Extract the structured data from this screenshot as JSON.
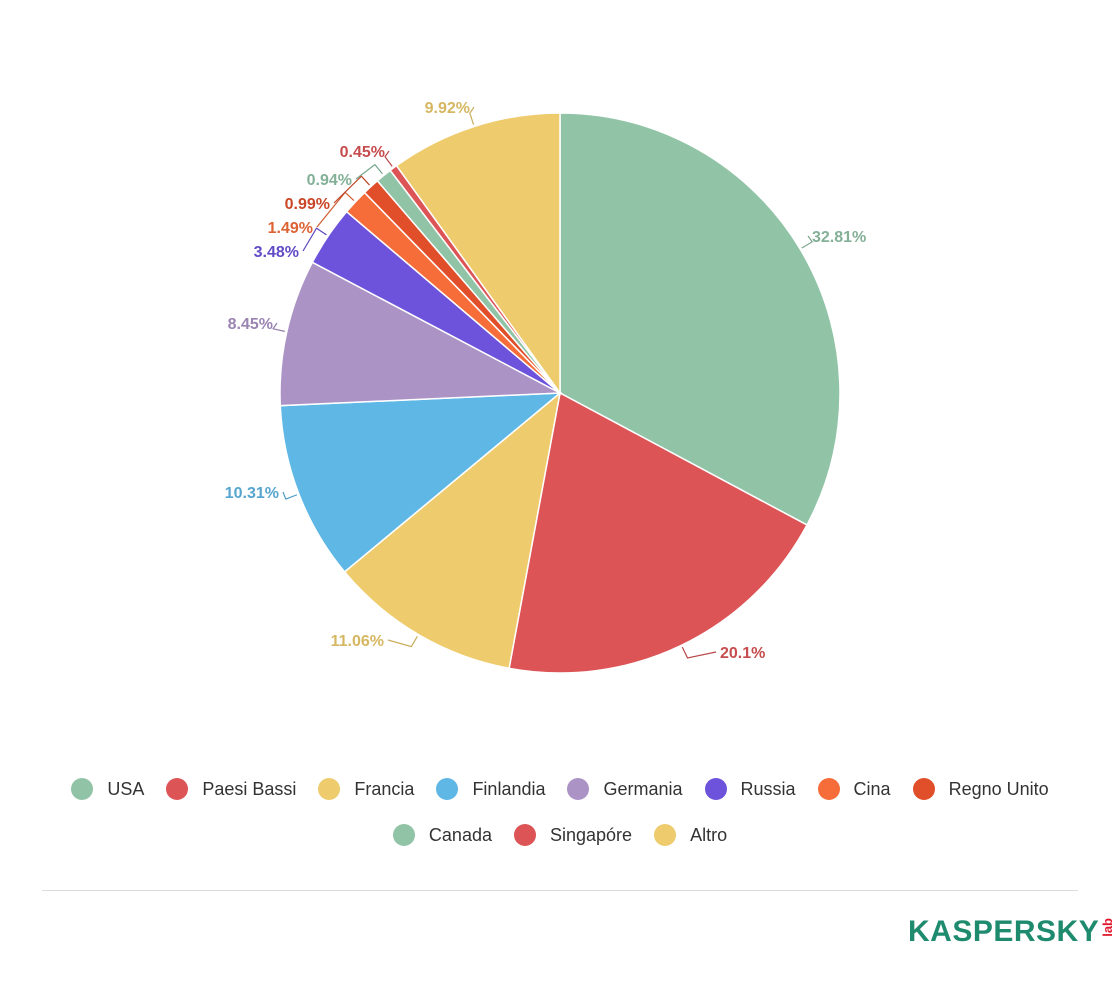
{
  "chart_data": {
    "type": "pie",
    "title": "",
    "slices": [
      {
        "name": "USA",
        "value": 32.81,
        "label": "32.81%",
        "color": "#91c4a7"
      },
      {
        "name": "Paesi Bassi",
        "value": 20.1,
        "label": "20.1%",
        "color": "#dc5456"
      },
      {
        "name": "Francia",
        "value": 11.06,
        "label": "11.06%",
        "color": "#eecb6c"
      },
      {
        "name": "Finlandia",
        "value": 10.31,
        "label": "10.31%",
        "color": "#5fb7e5"
      },
      {
        "name": "Germania",
        "value": 8.45,
        "label": "8.45%",
        "color": "#ab93c6"
      },
      {
        "name": "Russia",
        "value": 3.48,
        "label": "3.48%",
        "color": "#6d53dc"
      },
      {
        "name": "Cina",
        "value": 1.49,
        "label": "1.49%",
        "color": "#f66d3a"
      },
      {
        "name": "Regno Unito",
        "value": 0.99,
        "label": "0.99%",
        "color": "#e04e2a"
      },
      {
        "name": "Canada",
        "value": 0.94,
        "label": "0.94%",
        "color": "#91c4a7"
      },
      {
        "name": "Singapóre",
        "value": 0.45,
        "label": "0.45%",
        "color": "#dc5456"
      },
      {
        "name": "Altro",
        "value": 9.92,
        "label": "9.92%",
        "color": "#eecb6c"
      }
    ],
    "legend_placement": "bottom"
  },
  "legend": {
    "row1": [
      {
        "label": "USA",
        "color": "#91c4a7"
      },
      {
        "label": "Paesi Bassi",
        "color": "#dc5456"
      },
      {
        "label": "Francia",
        "color": "#eecb6c"
      },
      {
        "label": "Finlandia",
        "color": "#5fb7e5"
      },
      {
        "label": "Germania",
        "color": "#ab93c6"
      },
      {
        "label": "Russia",
        "color": "#6d53dc"
      },
      {
        "label": "Cina",
        "color": "#f66d3a"
      },
      {
        "label": "Regno Unito",
        "color": "#e04e2a"
      }
    ],
    "row2": [
      {
        "label": "Canada",
        "color": "#91c4a7"
      },
      {
        "label": "Singapóre",
        "color": "#dc5456"
      },
      {
        "label": "Altro",
        "color": "#eecb6c"
      }
    ]
  },
  "logo": {
    "word": "KASPERSKY",
    "suffix": "lab",
    "color": "#1e8a6e",
    "suffix_color": "#e2192c"
  }
}
